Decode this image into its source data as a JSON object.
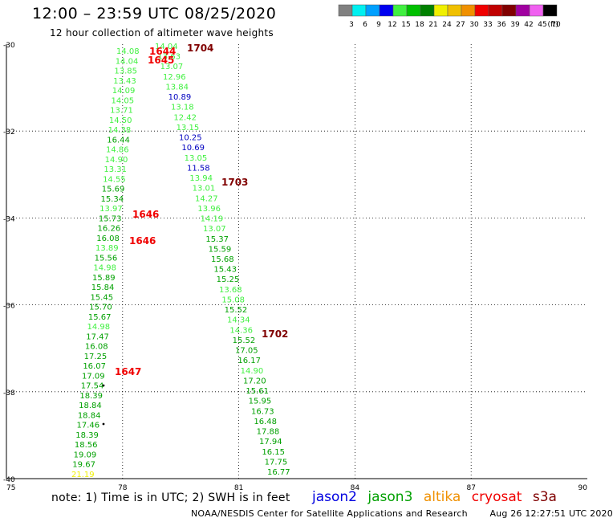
{
  "header": {
    "title": "12:00 – 23:59 UTC 08/25/2020",
    "subtitle": "12 hour collection of altimeter wave heights"
  },
  "color_scale": {
    "unit": "(ft)",
    "bins": [
      {
        "label": "3",
        "color": "#808080"
      },
      {
        "label": "6",
        "color": "#00f0f0"
      },
      {
        "label": "9",
        "color": "#00a0ff"
      },
      {
        "label": "12",
        "color": "#0000f0"
      },
      {
        "label": "15",
        "color": "#40f040"
      },
      {
        "label": "18",
        "color": "#00c000"
      },
      {
        "label": "21",
        "color": "#008000"
      },
      {
        "label": "24",
        "color": "#f0f000"
      },
      {
        "label": "27",
        "color": "#f0c000"
      },
      {
        "label": "30",
        "color": "#f09000"
      },
      {
        "label": "33",
        "color": "#f00000"
      },
      {
        "label": "36",
        "color": "#c00000"
      },
      {
        "label": "39",
        "color": "#800000"
      },
      {
        "label": "42",
        "color": "#a000a0"
      },
      {
        "label": "45",
        "color": "#f060f0"
      },
      {
        "label": "70",
        "color": "#000000"
      }
    ]
  },
  "map": {
    "lon_range": [
      75,
      90
    ],
    "lat_range": [
      -40,
      -30
    ],
    "x_ticks": [
      "75",
      "78",
      "81",
      "84",
      "87",
      "90"
    ],
    "y_ticks": [
      "-30",
      "-32",
      "-34",
      "-36",
      "-38",
      "-40"
    ],
    "y_tick_values": [
      -30,
      -32,
      -34,
      -36,
      -38,
      -40
    ],
    "x_tick_values": [
      75,
      78,
      81,
      84,
      87,
      90
    ],
    "grid": "dotted",
    "tracks": [
      {
        "points": [
          {
            "v": "14.08",
            "c": "light"
          },
          {
            "v": "14.04",
            "c": "light"
          },
          {
            "v": "13.85",
            "c": "light"
          },
          {
            "v": "13.43",
            "c": "light"
          },
          {
            "v": "14.09",
            "c": "light"
          },
          {
            "v": "14.05",
            "c": "light"
          },
          {
            "v": "13.71",
            "c": "light"
          },
          {
            "v": "14.50",
            "c": "light"
          },
          {
            "v": "14.38",
            "c": "light"
          },
          {
            "v": "16.44",
            "c": "dark"
          },
          {
            "v": "14.86",
            "c": "light"
          },
          {
            "v": "14.90",
            "c": "light"
          },
          {
            "v": "13.31",
            "c": "light"
          },
          {
            "v": "14.55",
            "c": "light"
          },
          {
            "v": "15.69",
            "c": "dark"
          },
          {
            "v": "15.34",
            "c": "dark"
          },
          {
            "v": "13.97",
            "c": "light"
          },
          {
            "v": "15.73",
            "c": "dark"
          },
          {
            "v": "16.26",
            "c": "dark"
          },
          {
            "v": "16.08",
            "c": "dark"
          },
          {
            "v": "13.89",
            "c": "light"
          },
          {
            "v": "15.56",
            "c": "dark"
          },
          {
            "v": "14.98",
            "c": "light"
          },
          {
            "v": "15.89",
            "c": "dark"
          },
          {
            "v": "15.84",
            "c": "dark"
          },
          {
            "v": "15.45",
            "c": "dark"
          },
          {
            "v": "15.70",
            "c": "dark"
          },
          {
            "v": "15.67",
            "c": "dark"
          },
          {
            "v": "14.98",
            "c": "light"
          },
          {
            "v": "17.47",
            "c": "dark"
          },
          {
            "v": "16.08",
            "c": "dark"
          },
          {
            "v": "17.25",
            "c": "dark"
          },
          {
            "v": "16.07",
            "c": "dark"
          },
          {
            "v": "17.09",
            "c": "dark"
          },
          {
            "v": "17.54",
            "c": "dark"
          },
          {
            "v": "18.39",
            "c": "dark"
          },
          {
            "v": "18.84",
            "c": "dark"
          },
          {
            "v": "18.84",
            "c": "dark"
          },
          {
            "v": "17.46",
            "c": "dark"
          },
          {
            "v": "18.39",
            "c": "dark"
          },
          {
            "v": "18.56",
            "c": "dark"
          },
          {
            "v": "19.09",
            "c": "dark"
          },
          {
            "v": "19.67",
            "c": "dark"
          },
          {
            "v": "21.19",
            "c": "yellow"
          }
        ]
      },
      {
        "points": [
          {
            "v": "14.04",
            "c": "light"
          },
          {
            "v": "13.63",
            "c": "light"
          },
          {
            "v": "13.07",
            "c": "light"
          },
          {
            "v": "12.96",
            "c": "light"
          },
          {
            "v": "13.84",
            "c": "light"
          },
          {
            "v": "10.89",
            "c": "blue"
          },
          {
            "v": "13.18",
            "c": "light"
          },
          {
            "v": "12.42",
            "c": "light"
          },
          {
            "v": "13.15",
            "c": "light"
          },
          {
            "v": "10.25",
            "c": "blue"
          },
          {
            "v": "10.69",
            "c": "blue"
          },
          {
            "v": "13.05",
            "c": "light"
          },
          {
            "v": "11.58",
            "c": "blue"
          },
          {
            "v": "13.94",
            "c": "light"
          },
          {
            "v": "13.01",
            "c": "light"
          },
          {
            "v": "14.27",
            "c": "light"
          },
          {
            "v": "13.96",
            "c": "light"
          },
          {
            "v": "14.19",
            "c": "light"
          },
          {
            "v": "13.07",
            "c": "light"
          },
          {
            "v": "15.37",
            "c": "dark"
          },
          {
            "v": "15.59",
            "c": "dark"
          },
          {
            "v": "15.68",
            "c": "dark"
          },
          {
            "v": "15.43",
            "c": "dark"
          },
          {
            "v": "15.25",
            "c": "dark"
          },
          {
            "v": "13.68",
            "c": "light"
          },
          {
            "v": "15.08",
            "c": "light"
          },
          {
            "v": "15.52",
            "c": "dark"
          },
          {
            "v": "14.34",
            "c": "light"
          },
          {
            "v": "14.36",
            "c": "light"
          },
          {
            "v": "15.52",
            "c": "dark"
          },
          {
            "v": "17.05",
            "c": "dark"
          },
          {
            "v": "16.17",
            "c": "dark"
          },
          {
            "v": "14.90",
            "c": "light"
          },
          {
            "v": "17.20",
            "c": "dark"
          },
          {
            "v": "15.61",
            "c": "dark"
          },
          {
            "v": "15.95",
            "c": "dark"
          },
          {
            "v": "16.73",
            "c": "dark"
          },
          {
            "v": "16.48",
            "c": "dark"
          },
          {
            "v": "17.88",
            "c": "dark"
          },
          {
            "v": "17.94",
            "c": "dark"
          },
          {
            "v": "16.15",
            "c": "dark"
          },
          {
            "v": "17.75",
            "c": "dark"
          },
          {
            "v": "16.77",
            "c": "dark"
          }
        ]
      }
    ],
    "time_labels": [
      {
        "text": "1704",
        "sat": "s3a"
      },
      {
        "text": "1644",
        "sat": "cryosat"
      },
      {
        "text": "1645",
        "sat": "cryosat"
      },
      {
        "text": "1703",
        "sat": "s3a"
      },
      {
        "text": "1646",
        "sat": "cryosat"
      },
      {
        "text": "1646",
        "sat": "cryosat"
      },
      {
        "text": "1702",
        "sat": "s3a"
      },
      {
        "text": "1647",
        "sat": "cryosat"
      }
    ],
    "value_colors": {
      "light": "#40f040",
      "dark": "#00a000",
      "blue": "#0000c0",
      "yellow": "#f0f000"
    },
    "sat_colors": {
      "s3a": "#800000",
      "cryosat": "#f00000"
    }
  },
  "note": "note:  1) Time is in UTC;  2) SWH is in feet",
  "legend": [
    {
      "label": "jason2",
      "color": "#0000e0"
    },
    {
      "label": "jason3",
      "color": "#00a000"
    },
    {
      "label": "altika",
      "color": "#f09000"
    },
    {
      "label": "cryosat",
      "color": "#f00000"
    },
    {
      "label": "s3a",
      "color": "#800000"
    }
  ],
  "footer": {
    "credit": "NOAA/NESDIS Center for Satellite Applications and Research",
    "timestamp": "Aug 26 12:27:51 UTC 2020"
  }
}
